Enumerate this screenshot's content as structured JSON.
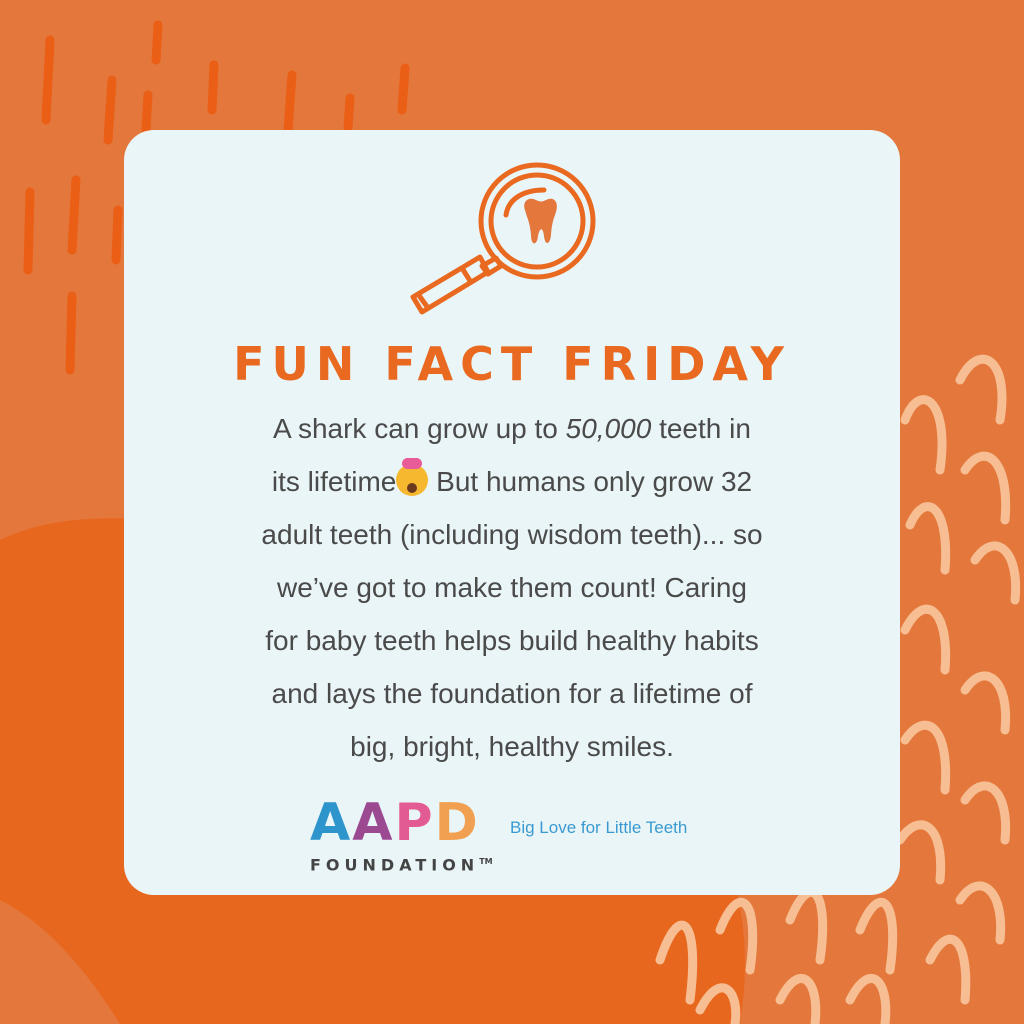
{
  "title": "FUN FACT FRIDAY",
  "body": {
    "line1_a": "A shark can grow up to ",
    "line1_em": "50,000",
    "line1_b": " teeth in",
    "line2_a": "its lifetime",
    "emoji": "exploding-head-emoji",
    "line2_b": " But humans only grow 32",
    "line3": "adult teeth (including wisdom teeth)... so",
    "line4": "we’ve got to make them count! Caring",
    "line5": "for baby teeth helps build healthy habits",
    "line6": "and lays the foundation for a lifetime of",
    "line7": "big, bright, healthy smiles."
  },
  "logo": {
    "letters": [
      "A",
      "A",
      "P",
      "D"
    ],
    "letter_colors": [
      "#2E95CC",
      "#9B4A92",
      "#E35B93",
      "#F0A050"
    ],
    "subtitle": "FOUNDATION",
    "trademark": "TM"
  },
  "tagline": "Big Love for Little Teeth",
  "icon": "magnifying-glass-tooth-icon",
  "colors": {
    "background": "#E4773C",
    "blob": "#E8671F",
    "card": "#EAF5F8",
    "accent": "#E8691F",
    "text": "#4A4A4A",
    "strokes_light": "#F6BE92"
  }
}
